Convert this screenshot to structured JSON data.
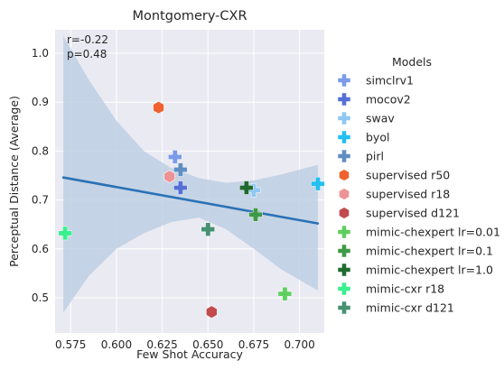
{
  "chart_data": {
    "type": "scatter",
    "title": "Montgomery-CXR",
    "xlabel": "Few Shot Accuracy",
    "ylabel": "Perceptual Distance (Average)",
    "xlim": [
      0.5665,
      0.7135
    ],
    "ylim": [
      0.428,
      1.048
    ],
    "xticks": [
      "0.575",
      "0.600",
      "0.625",
      "0.650",
      "0.675",
      "0.700"
    ],
    "xtick_values": [
      0.575,
      0.6,
      0.625,
      0.65,
      0.675,
      0.7
    ],
    "yticks": [
      "0.5",
      "0.6",
      "0.7",
      "0.8",
      "0.9",
      "1.0"
    ],
    "ytick_values": [
      0.5,
      0.6,
      0.7,
      0.8,
      0.9,
      1.0
    ],
    "annotation": [
      "r=-0.22",
      "p=0.48"
    ],
    "grid": true,
    "legend_title": "Models",
    "legend_position": "right",
    "regression": {
      "x": [
        0.571,
        0.71
      ],
      "y": [
        0.746,
        0.652
      ],
      "band_upper": [
        [
          0.571,
          1.035
        ],
        [
          0.585,
          0.945
        ],
        [
          0.6,
          0.862
        ],
        [
          0.615,
          0.8
        ],
        [
          0.63,
          0.765
        ],
        [
          0.645,
          0.745
        ],
        [
          0.66,
          0.735
        ],
        [
          0.675,
          0.74
        ],
        [
          0.69,
          0.752
        ],
        [
          0.71,
          0.772
        ]
      ],
      "band_lower": [
        [
          0.571,
          0.47
        ],
        [
          0.585,
          0.545
        ],
        [
          0.6,
          0.6
        ],
        [
          0.615,
          0.632
        ],
        [
          0.63,
          0.655
        ],
        [
          0.645,
          0.664
        ],
        [
          0.66,
          0.64
        ],
        [
          0.675,
          0.6
        ],
        [
          0.69,
          0.558
        ],
        [
          0.71,
          0.515
        ]
      ]
    },
    "series": [
      {
        "name": "simclrv1",
        "marker": "plus",
        "color": "#7b9bea",
        "points": [
          [
            0.632,
            0.788
          ]
        ]
      },
      {
        "name": "mocov2",
        "marker": "plus",
        "color": "#5470d6",
        "points": [
          [
            0.635,
            0.725
          ]
        ]
      },
      {
        "name": "swav",
        "marker": "plus",
        "color": "#8fc8f2",
        "points": [
          [
            0.675,
            0.72
          ]
        ]
      },
      {
        "name": "byol",
        "marker": "plus",
        "color": "#24bff0",
        "points": [
          [
            0.71,
            0.733
          ]
        ]
      },
      {
        "name": "pirl",
        "marker": "plus",
        "color": "#5f8fc2",
        "points": [
          [
            0.635,
            0.762
          ]
        ]
      },
      {
        "name": "supervised r50",
        "marker": "hexagon",
        "color": "#f06131",
        "points": [
          [
            0.623,
            0.889
          ]
        ]
      },
      {
        "name": "supervised r18",
        "marker": "hexagon",
        "color": "#ee9395",
        "points": [
          [
            0.629,
            0.748
          ]
        ]
      },
      {
        "name": "supervised d121",
        "marker": "hexagon",
        "color": "#c24a4d",
        "points": [
          [
            0.652,
            0.471
          ]
        ]
      },
      {
        "name": "mimic-chexpert lr=0.01",
        "marker": "plus",
        "color": "#5ecf5e",
        "points": [
          [
            0.692,
            0.508
          ]
        ]
      },
      {
        "name": "mimic-chexpert lr=0.1",
        "marker": "plus",
        "color": "#3e9a46",
        "points": [
          [
            0.676,
            0.67
          ]
        ]
      },
      {
        "name": "mimic-chexpert lr=1.0",
        "marker": "plus",
        "color": "#1f6b2f",
        "points": [
          [
            0.671,
            0.725
          ]
        ]
      },
      {
        "name": "mimic-cxr r18",
        "marker": "plus",
        "color": "#39f08e",
        "points": [
          [
            0.572,
            0.632
          ]
        ]
      },
      {
        "name": "mimic-cxr d121",
        "marker": "plus",
        "color": "#459172",
        "points": [
          [
            0.65,
            0.64
          ]
        ]
      }
    ],
    "colors": {
      "plot_bg": "#eaeaf2",
      "grid": "#ffffff",
      "regression_line": "#2a72b5",
      "band": "#b7cbe0"
    }
  }
}
